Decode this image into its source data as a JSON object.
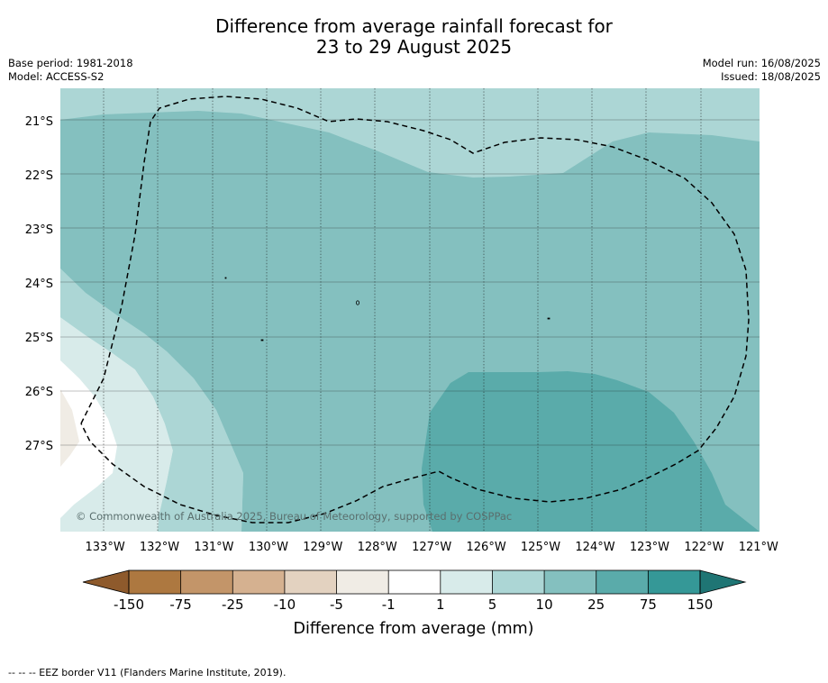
{
  "title_line1": "Difference from average rainfall forecast for",
  "title_line2": "23 to 29 August 2025",
  "base_period": "Base period: 1981-2018",
  "model": "Model: ACCESS-S2",
  "model_run": "Model run: 16/08/2025",
  "issued": "Issued: 18/08/2025",
  "copyright": "© Commonwealth of Australia 2025, Bureau of Meteorology, supported by COSPPac",
  "footnote": "--  --  -- EEZ border V11 (Flanders Marine Institute, 2019).",
  "chart_data": {
    "type": "heatmap",
    "x_tick_labels": [
      "133°W",
      "132°W",
      "131°W",
      "130°W",
      "129°W",
      "128°W",
      "127°W",
      "126°W",
      "125°W",
      "124°W",
      "123°W",
      "122°W",
      "121°W"
    ],
    "x_ticks": [
      -133,
      -132,
      -131,
      -130,
      -129,
      -128,
      -127,
      -126,
      -125,
      -124,
      -123,
      -122,
      -121
    ],
    "y_tick_labels": [
      "21°S",
      "22°S",
      "23°S",
      "24°S",
      "25°S",
      "26°S",
      "27°S"
    ],
    "y_ticks": [
      -21,
      -22,
      -23,
      -24,
      -25,
      -26,
      -27
    ],
    "xlim": [
      -133.82,
      -120.98
    ],
    "ylim": [
      -28.6,
      -20.4
    ],
    "grid": true,
    "colorbar": {
      "label": "Difference from average (mm)",
      "tick_labels": [
        "-150",
        "-75",
        "-25",
        "-10",
        "-5",
        "-1",
        "1",
        "5",
        "10",
        "25",
        "75",
        "150"
      ],
      "colors": [
        "#8e5a2c",
        "#ad7840",
        "#c39569",
        "#d5b190",
        "#e3d2c0",
        "#f0ece5",
        "#ffffff",
        "#d8ebea",
        "#acd6d5",
        "#84c0bf",
        "#5aabaa",
        "#359897",
        "#1f7574"
      ]
    },
    "regions": [
      {
        "class": "1 to 5",
        "color": "#d8ebea"
      },
      {
        "class": "5 to 10",
        "color": "#acd6d5"
      },
      {
        "class": "10 to 25",
        "color": "#84c0bf"
      },
      {
        "class": "25 to 75",
        "color": "#5aabaa"
      },
      {
        "class": "-1 to 1",
        "color": "#ffffff"
      },
      {
        "class": "-5 to -1",
        "color": "#f0ece5"
      }
    ]
  }
}
